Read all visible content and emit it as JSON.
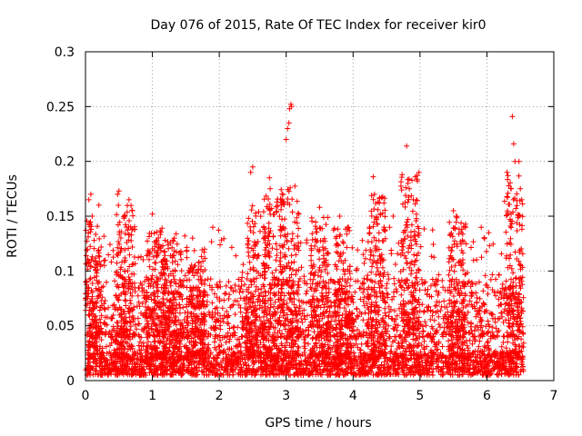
{
  "chart_data": {
    "type": "scatter",
    "title": "Day 076 of 2015, Rate Of TEC Index for receiver kir0",
    "xlabel": "GPS time / hours",
    "ylabel": "ROTI / TECUs",
    "xlim": [
      0,
      7
    ],
    "ylim": [
      0,
      0.3
    ],
    "xticks": [
      0,
      1,
      2,
      3,
      4,
      5,
      6,
      7
    ],
    "xtick_labels": [
      "0",
      "1",
      "2",
      "3",
      "4",
      "5",
      "6",
      "7"
    ],
    "yticks": [
      0,
      0.05,
      0.1,
      0.15,
      0.2,
      0.25,
      0.3
    ],
    "ytick_labels": [
      "0",
      "0.05",
      "0.1",
      "0.15",
      "0.2",
      "0.25",
      "0.3"
    ],
    "grid": true,
    "marker": "+",
    "color": "#ff0000",
    "series": [
      {
        "name": "ROTI",
        "x_range": [
          0.0,
          6.55
        ],
        "typical_range": [
          0.005,
          0.06
        ],
        "notable_points": [
          {
            "x": 0.05,
            "y": 0.165
          },
          {
            "x": 0.08,
            "y": 0.17
          },
          {
            "x": 0.1,
            "y": 0.15
          },
          {
            "x": 0.2,
            "y": 0.16
          },
          {
            "x": 0.48,
            "y": 0.17
          },
          {
            "x": 0.5,
            "y": 0.173
          },
          {
            "x": 0.65,
            "y": 0.165
          },
          {
            "x": 1.0,
            "y": 0.152
          },
          {
            "x": 1.6,
            "y": 0.13
          },
          {
            "x": 2.47,
            "y": 0.19
          },
          {
            "x": 2.5,
            "y": 0.195
          },
          {
            "x": 2.75,
            "y": 0.185
          },
          {
            "x": 2.76,
            "y": 0.175
          },
          {
            "x": 3.0,
            "y": 0.22
          },
          {
            "x": 3.02,
            "y": 0.23
          },
          {
            "x": 3.04,
            "y": 0.235
          },
          {
            "x": 3.05,
            "y": 0.248
          },
          {
            "x": 3.07,
            "y": 0.252
          },
          {
            "x": 3.08,
            "y": 0.25
          },
          {
            "x": 3.5,
            "y": 0.158
          },
          {
            "x": 3.8,
            "y": 0.15
          },
          {
            "x": 4.3,
            "y": 0.186
          },
          {
            "x": 4.32,
            "y": 0.17
          },
          {
            "x": 4.6,
            "y": 0.15
          },
          {
            "x": 4.8,
            "y": 0.214
          },
          {
            "x": 4.82,
            "y": 0.18
          },
          {
            "x": 4.9,
            "y": 0.165
          },
          {
            "x": 5.5,
            "y": 0.155
          },
          {
            "x": 6.3,
            "y": 0.19
          },
          {
            "x": 6.38,
            "y": 0.241
          },
          {
            "x": 6.4,
            "y": 0.216
          },
          {
            "x": 6.42,
            "y": 0.2
          },
          {
            "x": 6.48,
            "y": 0.2
          },
          {
            "x": 6.5,
            "y": 0.175
          },
          {
            "x": 6.52,
            "y": 0.165
          }
        ],
        "bursts": [
          {
            "x": 0.1,
            "peak": 0.15
          },
          {
            "x": 0.6,
            "peak": 0.16
          },
          {
            "x": 1.05,
            "peak": 0.14
          },
          {
            "x": 1.3,
            "peak": 0.13
          },
          {
            "x": 1.65,
            "peak": 0.12
          },
          {
            "x": 2.55,
            "peak": 0.16
          },
          {
            "x": 2.8,
            "peak": 0.17
          },
          {
            "x": 3.05,
            "peak": 0.18
          },
          {
            "x": 3.5,
            "peak": 0.15
          },
          {
            "x": 3.85,
            "peak": 0.14
          },
          {
            "x": 4.35,
            "peak": 0.17
          },
          {
            "x": 4.85,
            "peak": 0.19
          },
          {
            "x": 5.55,
            "peak": 0.15
          },
          {
            "x": 6.4,
            "peak": 0.19
          }
        ]
      }
    ]
  }
}
